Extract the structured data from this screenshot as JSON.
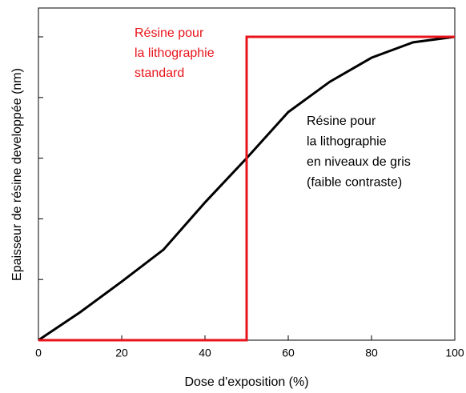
{
  "chart_data": {
    "type": "line",
    "xlabel": "Dose d'exposition (%)",
    "ylabel": "Epaisseur de résine developpée (nm)",
    "xlim": [
      0,
      100
    ],
    "xticks": [
      0,
      20,
      40,
      60,
      80,
      100
    ],
    "ylim": [
      0,
      1.095
    ],
    "yticks": [
      0,
      0.2,
      0.4,
      0.6,
      0.8,
      1.0
    ],
    "series": [
      {
        "color": "#000000",
        "x": [
          0,
          10,
          20,
          30,
          40,
          50,
          60,
          70,
          80,
          90,
          100
        ],
        "values": [
          0,
          0.092,
          0.193,
          0.298,
          0.454,
          0.6,
          0.752,
          0.852,
          0.931,
          0.982,
          1.0
        ]
      },
      {
        "color": "#e8141b",
        "x": [
          0,
          50,
          50,
          100
        ],
        "values": [
          0,
          0,
          1.0,
          1.0
        ]
      }
    ],
    "annotations": [
      {
        "color": "#e8141b",
        "lines": [
          "Résine pour",
          "la lithographie",
          "standard"
        ]
      },
      {
        "color": "#000000",
        "lines": [
          "Résine pour",
          "la lithographie",
          "en niveaux de gris",
          "(faible contraste)"
        ]
      }
    ]
  }
}
